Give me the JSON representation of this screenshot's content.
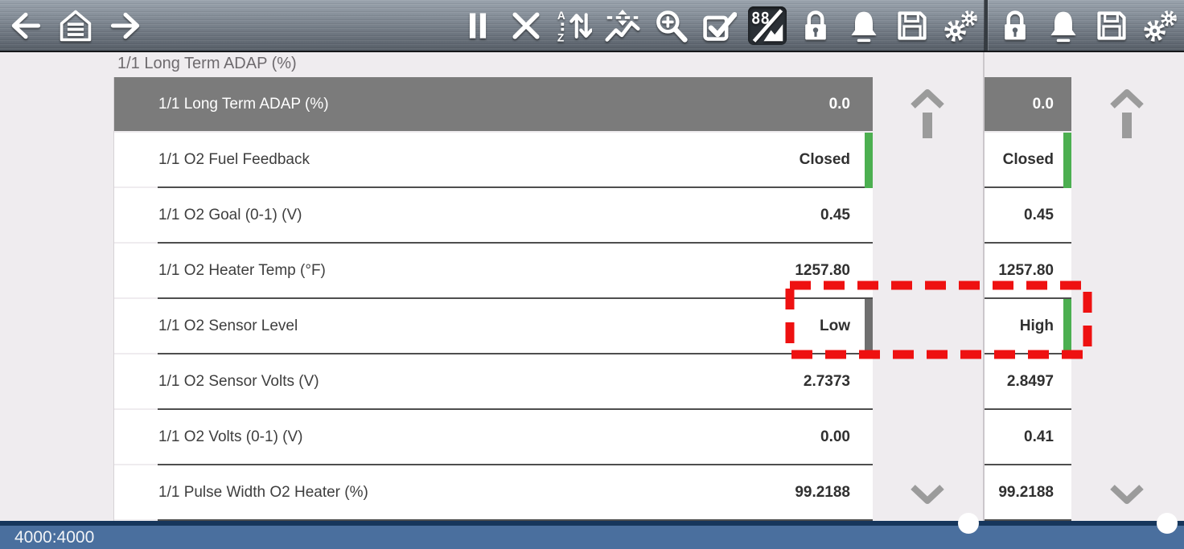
{
  "toolbar": {
    "nav": [
      {
        "name": "back"
      },
      {
        "name": "home"
      },
      {
        "name": "forward"
      }
    ],
    "actions": [
      {
        "name": "pause"
      },
      {
        "name": "close"
      },
      {
        "name": "sort"
      },
      {
        "name": "custom-data"
      },
      {
        "name": "zoom"
      },
      {
        "name": "select"
      },
      {
        "name": "digital-graph-toggle",
        "active": true
      },
      {
        "name": "lock"
      },
      {
        "name": "alarm"
      },
      {
        "name": "save"
      },
      {
        "name": "settings"
      }
    ],
    "right_actions": [
      {
        "name": "lock"
      },
      {
        "name": "alarm"
      },
      {
        "name": "save"
      },
      {
        "name": "settings"
      }
    ]
  },
  "content": {
    "selected_pid_header": "1/1 Long Term ADAP (%)"
  },
  "pid_list": {
    "rows": [
      {
        "label": "1/1 Long Term ADAP (%)",
        "value": "0.0",
        "value_right": "0.0",
        "selected": true,
        "bar": "",
        "bar_right": ""
      },
      {
        "label": "1/1 O2 Fuel Feedback",
        "value": "Closed",
        "value_right": "Closed",
        "selected": false,
        "bar": "green",
        "bar_right": "green"
      },
      {
        "label": "1/1 O2 Goal (0-1) (V)",
        "value": "0.45",
        "value_right": "0.45",
        "selected": false,
        "bar": "",
        "bar_right": ""
      },
      {
        "label": "1/1 O2 Heater Temp (°F)",
        "value": "1257.80",
        "value_right": "1257.80",
        "selected": false,
        "bar": "",
        "bar_right": ""
      },
      {
        "label": "1/1 O2 Sensor Level",
        "value": "Low",
        "value_right": "High",
        "selected": false,
        "bar": "gray",
        "bar_right": "green",
        "highlighted": true
      },
      {
        "label": "1/1 O2 Sensor Volts (V)",
        "value": "2.7373",
        "value_right": "2.8497",
        "selected": false,
        "bar": "",
        "bar_right": ""
      },
      {
        "label": "1/1 O2 Volts (0-1) (V)",
        "value": "0.00",
        "value_right": "0.41",
        "selected": false,
        "bar": "",
        "bar_right": ""
      },
      {
        "label": "1/1 Pulse Width O2 Heater (%)",
        "value": "99.2188",
        "value_right": "99.2188",
        "selected": false,
        "bar": "",
        "bar_right": ""
      }
    ]
  },
  "status_bar": {
    "buffer_text": "4000:4000"
  },
  "colors": {
    "status_green": "#4caf50",
    "status_gray": "#6f6f6f",
    "selected_row_gray": "#7b7b7b",
    "highlight_red": "#ee1111",
    "status_bar_blue": "#4a6f9e",
    "status_bar_border_navy": "#16365c"
  }
}
